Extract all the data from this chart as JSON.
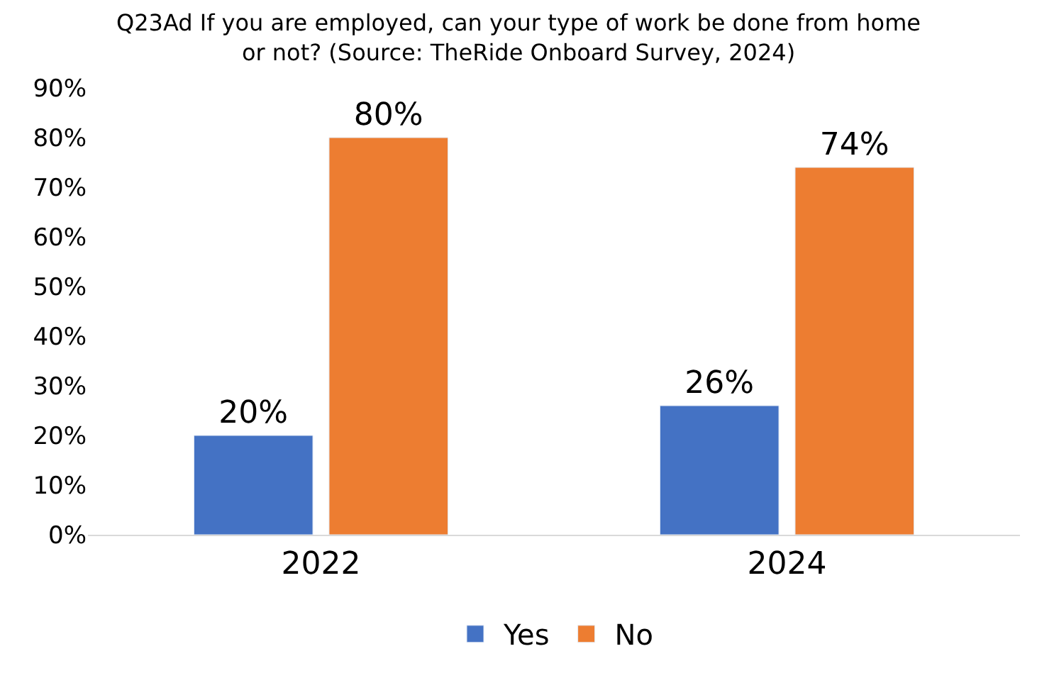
{
  "chart_data": {
    "type": "bar",
    "title": "Q23Ad If you are employed, can your type of work be done from home\nor not? (Source: TheRide Onboard Survey, 2024)",
    "categories": [
      "2022",
      "2024"
    ],
    "series": [
      {
        "name": "Yes",
        "color": "#4472c4",
        "values": [
          20,
          26
        ],
        "value_labels": [
          "20%",
          "26%"
        ]
      },
      {
        "name": "No",
        "color": "#ed7d31",
        "values": [
          80,
          74
        ],
        "value_labels": [
          "80%",
          "74%"
        ]
      }
    ],
    "ylim": [
      0,
      90
    ],
    "yticks": [
      {
        "value": 0,
        "label": "0%"
      },
      {
        "value": 10,
        "label": "10%"
      },
      {
        "value": 20,
        "label": "20%"
      },
      {
        "value": 30,
        "label": "30%"
      },
      {
        "value": 40,
        "label": "40%"
      },
      {
        "value": 50,
        "label": "50%"
      },
      {
        "value": 60,
        "label": "60%"
      },
      {
        "value": 70,
        "label": "70%"
      },
      {
        "value": 80,
        "label": "80%"
      },
      {
        "value": 90,
        "label": "90%"
      }
    ],
    "legend": "bottom"
  }
}
